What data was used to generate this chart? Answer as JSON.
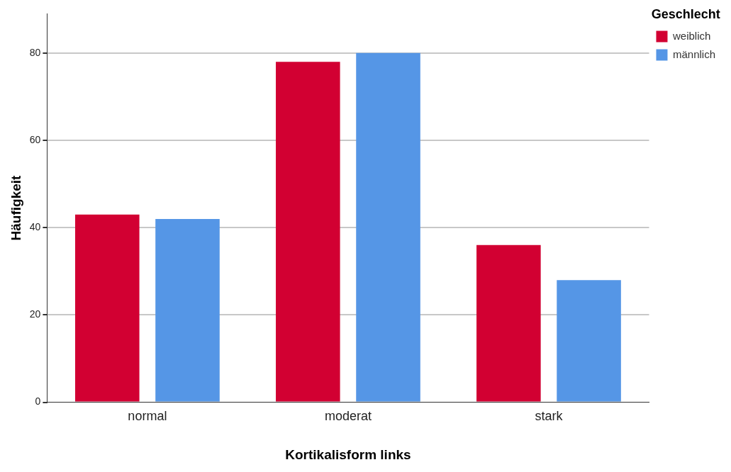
{
  "chart_data": {
    "type": "bar",
    "xlabel": "Kortikalisform links",
    "ylabel": "Häufigkeit",
    "legend_title": "Geschlecht",
    "categories": [
      "normal",
      "moderat",
      "stark"
    ],
    "series": [
      {
        "name": "weiblich",
        "color": "#d20032",
        "values": [
          43,
          78,
          36
        ]
      },
      {
        "name": "männlich",
        "color": "#5596e6",
        "values": [
          42,
          80,
          28
        ]
      }
    ],
    "ylim": [
      0,
      89
    ],
    "yticks": [
      0,
      20,
      40,
      60,
      80
    ],
    "grid": "y",
    "legend": "top right"
  }
}
